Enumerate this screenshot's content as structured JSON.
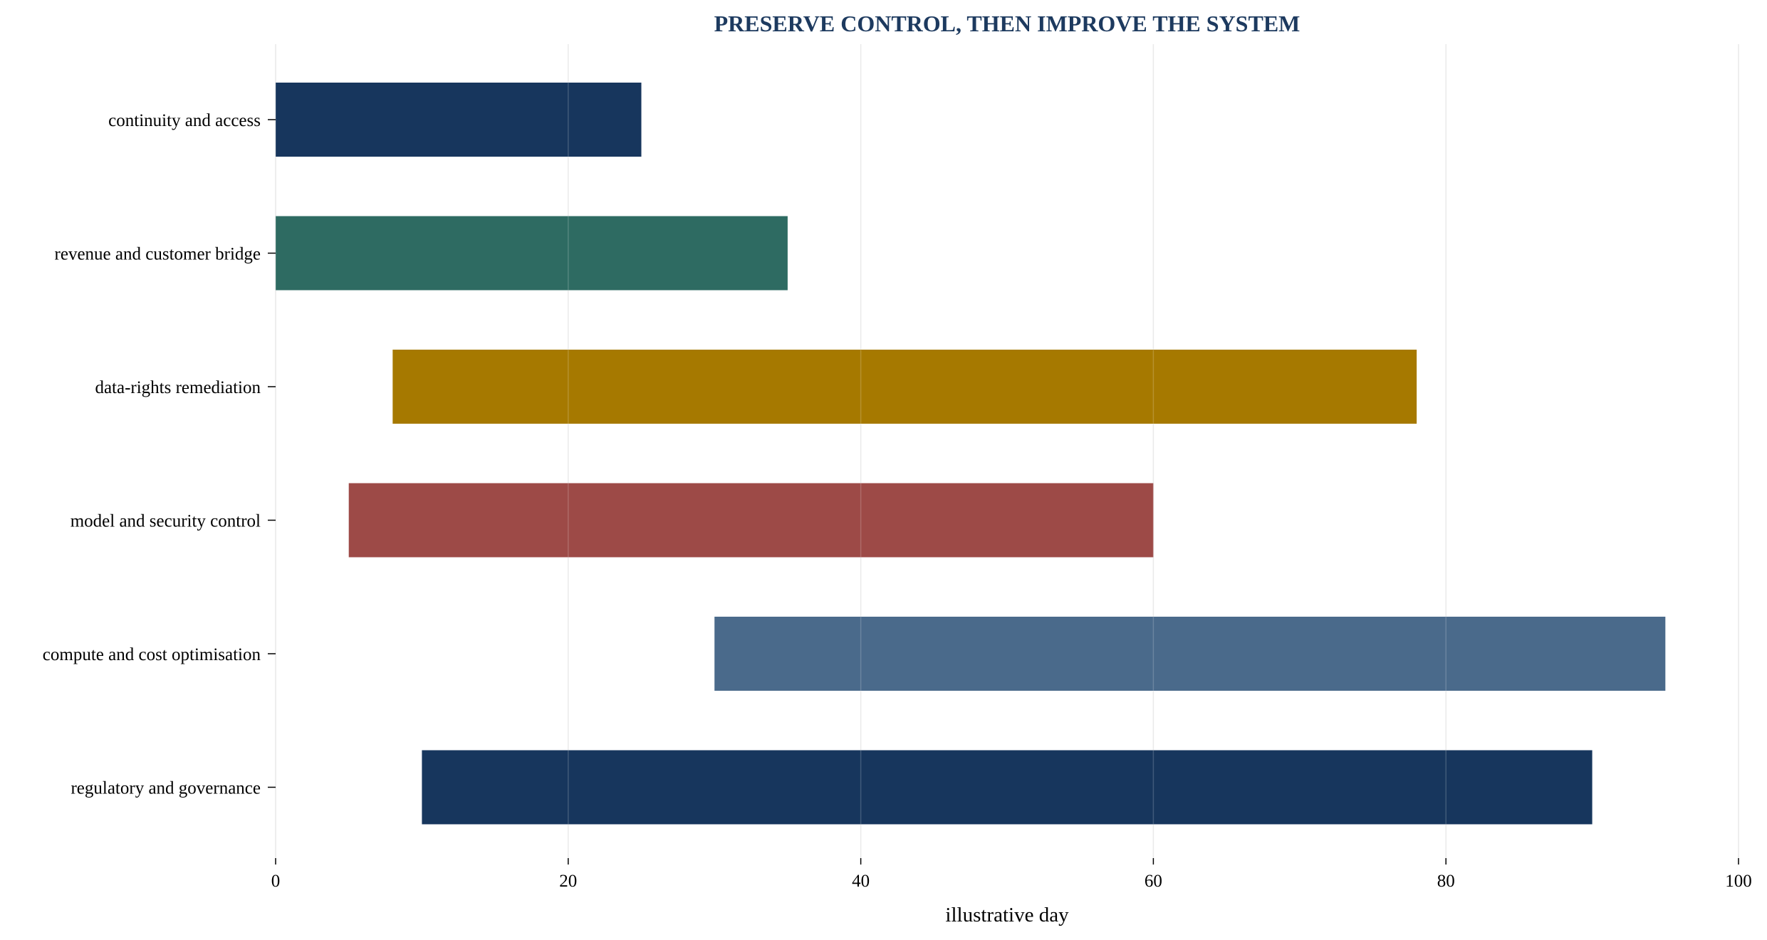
{
  "chart_data": {
    "type": "bar",
    "orientation": "horizontal",
    "title": "PRESERVE CONTROL, THEN IMPROVE THE SYSTEM",
    "xlabel": "illustrative day",
    "ylabel": "",
    "xlim": [
      0,
      100
    ],
    "xticks": [
      0,
      20,
      40,
      60,
      80,
      100
    ],
    "grid": "vertical",
    "categories": [
      "continuity and access",
      "revenue and customer bridge",
      "data-rights remediation",
      "model and security control",
      "compute and cost optimisation",
      "regulatory and governance"
    ],
    "bars": [
      {
        "category": "continuity and access",
        "start": 0,
        "end": 25,
        "color": "#17365d"
      },
      {
        "category": "revenue and customer bridge",
        "start": 0,
        "end": 35,
        "color": "#2e6b62"
      },
      {
        "category": "data-rights remediation",
        "start": 8,
        "end": 78,
        "color": "#a67900"
      },
      {
        "category": "model and security control",
        "start": 5,
        "end": 60,
        "color": "#9d4a47"
      },
      {
        "category": "compute and cost optimisation",
        "start": 30,
        "end": 95,
        "color": "#4a6a8b"
      },
      {
        "category": "regulatory and governance",
        "start": 10,
        "end": 90,
        "color": "#17365d"
      }
    ]
  },
  "colors": {
    "title": "#1d3a5f",
    "grid": "#e6e6e6",
    "axis": "#000000"
  }
}
